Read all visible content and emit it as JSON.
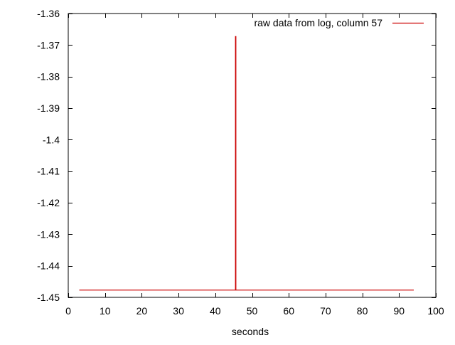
{
  "chart_data": {
    "type": "line",
    "title": "",
    "xlabel": "seconds",
    "ylabel": "",
    "xlim": [
      0,
      100
    ],
    "ylim": [
      -1.45,
      -1.36
    ],
    "xticks": [
      0,
      10,
      20,
      30,
      40,
      50,
      60,
      70,
      80,
      90,
      100
    ],
    "xtick_labels": [
      "0",
      "10",
      "20",
      "30",
      "40",
      "50",
      "60",
      "70",
      "80",
      "90",
      "100"
    ],
    "yticks": [
      -1.36,
      -1.37,
      -1.38,
      -1.39,
      -1.4,
      -1.41,
      -1.42,
      -1.43,
      -1.44,
      -1.45
    ],
    "ytick_labels": [
      "-1.36",
      "-1.37",
      "-1.38",
      "-1.39",
      "-1.4",
      "-1.41",
      "-1.42",
      "-1.43",
      "-1.44",
      "-1.45"
    ],
    "grid": false,
    "legend_position": "top-right",
    "series": [
      {
        "name": "raw data from log, column 57",
        "color": "#cc0000",
        "x": [
          3.0,
          45.5,
          45.5,
          45.6,
          45.6,
          94.0
        ],
        "y": [
          -1.4477,
          -1.4477,
          -1.3673,
          -1.3673,
          -1.4477,
          -1.4477
        ]
      }
    ]
  }
}
